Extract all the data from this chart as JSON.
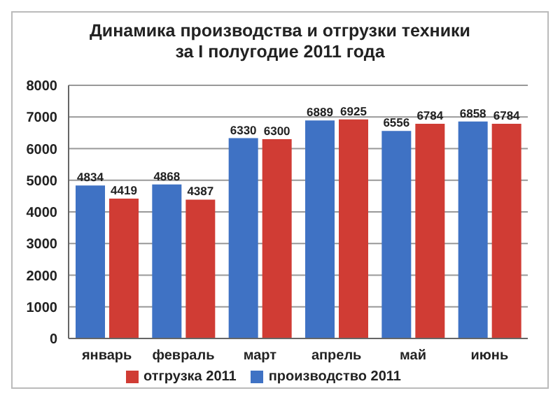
{
  "chart_data": {
    "type": "bar",
    "title": "Динамика производства и отгрузки техники\nза I полугодие 2011 года",
    "categories": [
      "январь",
      "февраль",
      "март",
      "апрель",
      "май",
      "июнь"
    ],
    "series": [
      {
        "name": "производство 2011",
        "color": "#3f72c4",
        "values": [
          4834,
          4868,
          6330,
          6889,
          6556,
          6858
        ]
      },
      {
        "name": "отгрузка 2011",
        "color": "#d03c34",
        "values": [
          4419,
          4387,
          6300,
          6925,
          6784,
          6784
        ]
      }
    ],
    "ylim": [
      0,
      8000
    ],
    "yticks": [
      0,
      1000,
      2000,
      3000,
      4000,
      5000,
      6000,
      7000,
      8000
    ],
    "grid": "y",
    "legend": "bottom",
    "data_labels": true
  }
}
